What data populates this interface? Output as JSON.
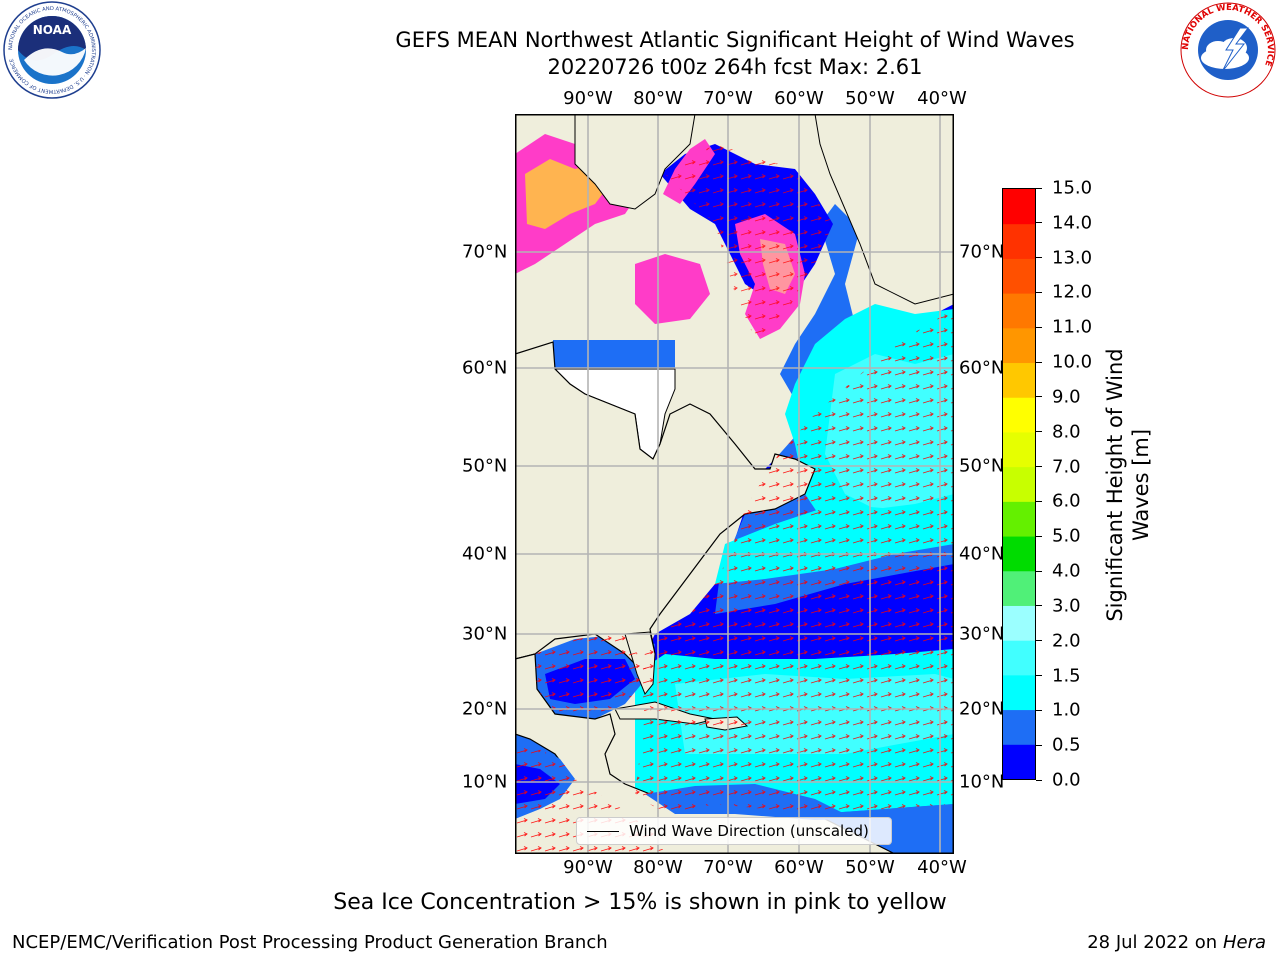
{
  "title": {
    "line1": "GEFS MEAN Northwest Atlantic Significant Height of Wind Waves",
    "line2": "20220726 t00z 264h fcst   Max: 2.61"
  },
  "map": {
    "longitude_labels": [
      "90°W",
      "80°W",
      "70°W",
      "60°W",
      "50°W",
      "40°W"
    ],
    "latitude_labels": [
      "70°N",
      "60°N",
      "50°N",
      "40°N",
      "30°N",
      "20°N",
      "10°N"
    ],
    "colors": {
      "land": "#efeedc",
      "frame": "#000000",
      "grid": "#b4b4b4",
      "coast": "#000000",
      "arrows": "#ff0000"
    }
  },
  "legend": {
    "label": "Wind Wave Direction (unscaled)"
  },
  "colorbar": {
    "label_line1": "Significant Height of Wind",
    "label_line2": "Waves [m]",
    "ticks": [
      "0.0",
      "0.5",
      "1.0",
      "1.5",
      "2.0",
      "3.0",
      "4.0",
      "5.0",
      "6.0",
      "7.0",
      "8.0",
      "9.0",
      "10.0",
      "11.0",
      "12.0",
      "13.0",
      "14.0",
      "15.0"
    ],
    "colors": [
      "#0000ff",
      "#1e6ef5",
      "#00ffff",
      "#41ffff",
      "#9bffff",
      "#50f078",
      "#00dc00",
      "#64f000",
      "#c8ff00",
      "#e6ff00",
      "#ffff00",
      "#ffc800",
      "#ff9600",
      "#ff7800",
      "#ff5000",
      "#ff3200",
      "#ff0000"
    ]
  },
  "note": "Sea Ice Concentration > 15% is shown in pink to yellow",
  "footer": {
    "left": "NCEP/EMC/Verification Post Processing Product Generation Branch",
    "right_prefix": "28 Jul 2022 on",
    "right_host": "Hera"
  },
  "logos": {
    "noaa_text": "NOAA",
    "noaa_ring_text": "NATIONAL OCEANIC AND ATMOSPHERIC ADMINISTRATION · U.S. DEPARTMENT OF COMMERCE",
    "nws_ring_text": "NATIONAL WEATHER SERVICE"
  }
}
